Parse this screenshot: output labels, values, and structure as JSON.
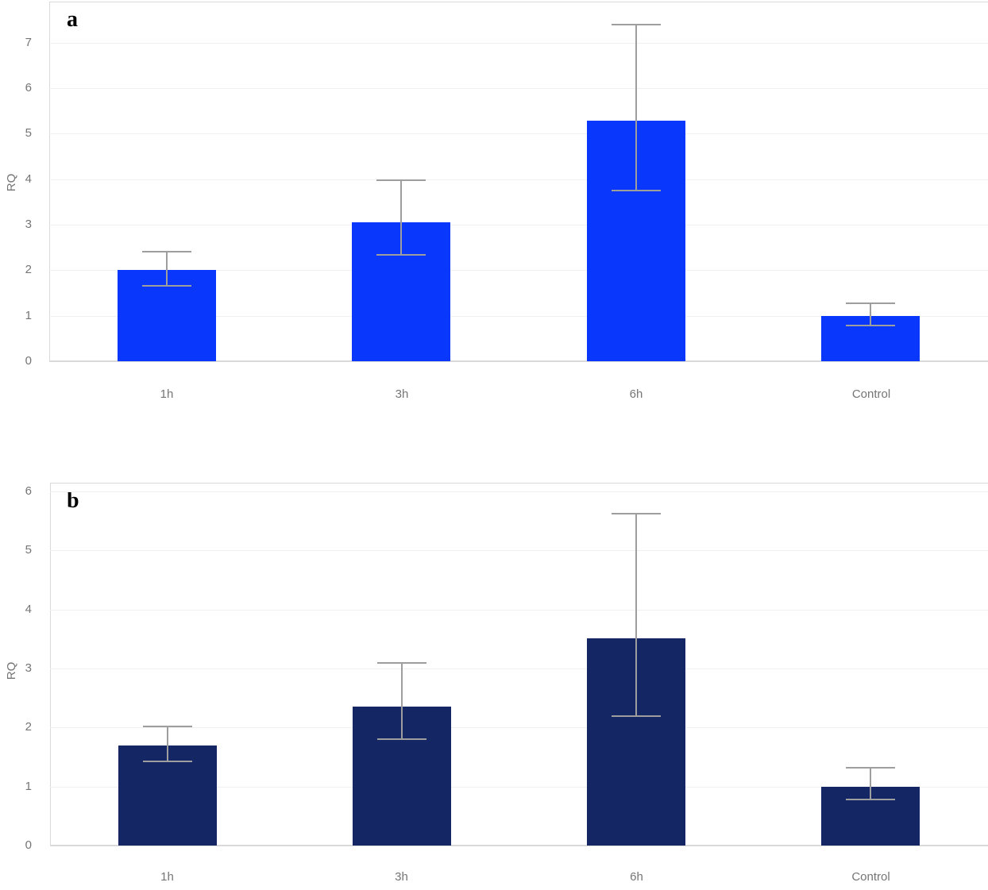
{
  "chart_data": [
    {
      "type": "bar",
      "panel_label": "a",
      "ylabel": "RQ",
      "xlabel": "",
      "categories": [
        "1h",
        "3h",
        "6h",
        "Control"
      ],
      "values": [
        2.0,
        3.05,
        5.28,
        1.0
      ],
      "error_low": [
        1.66,
        2.33,
        3.75,
        0.78
      ],
      "error_high": [
        2.4,
        3.97,
        7.4,
        1.28
      ],
      "yticks": [
        0,
        1,
        2,
        3,
        4,
        5,
        6,
        7
      ],
      "ylim": [
        0,
        7.9
      ],
      "bar_color": "#0a37fc",
      "grid": true,
      "legend": "none"
    },
    {
      "type": "bar",
      "panel_label": "b",
      "ylabel": "RQ",
      "xlabel": "",
      "categories": [
        "1h",
        "3h",
        "6h",
        "Control"
      ],
      "values": [
        1.69,
        2.36,
        3.51,
        1.0
      ],
      "error_low": [
        1.42,
        1.8,
        2.19,
        0.78
      ],
      "error_high": [
        2.02,
        3.09,
        5.62,
        1.32
      ],
      "yticks": [
        0,
        1,
        2,
        3,
        4,
        5,
        6
      ],
      "ylim": [
        0,
        6.15
      ],
      "bar_color": "#152664",
      "grid": true,
      "legend": "none"
    }
  ],
  "styles": {
    "background": "#ffffff",
    "gridline_color": "#f0f0f0",
    "baseline_color": "#d9d9d9",
    "axis_border_color": "#d9d9d9",
    "error_bar_color": "#9e9e9e",
    "tick_text_color": "#757575"
  }
}
